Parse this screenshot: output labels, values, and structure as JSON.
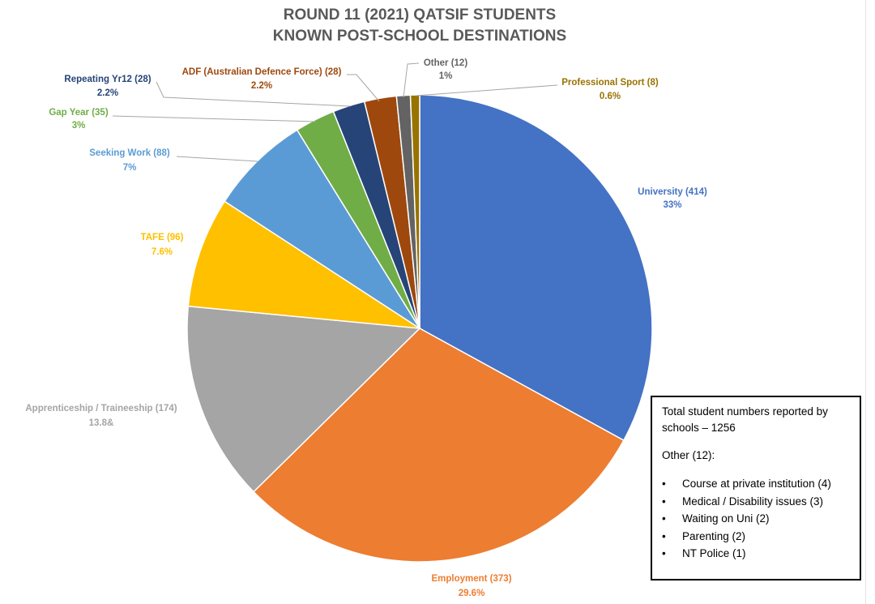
{
  "chart_data": {
    "type": "pie",
    "title_lines": [
      "ROUND 11 (2021) QATSIF STUDENTS",
      "KNOWN POST-SCHOOL DESTINATIONS"
    ],
    "slices": [
      {
        "label": "University",
        "count": 414,
        "count_text": "University (414)",
        "pct_text": "33%",
        "color": "#4472C4"
      },
      {
        "label": "Employment",
        "count": 373,
        "count_text": "Employment (373)",
        "pct_text": "29.6%",
        "color": "#ED7D31"
      },
      {
        "label": "Apprenticeship / Traineeship",
        "count": 174,
        "count_text": "Apprenticeship / Traineeship (174)",
        "pct_text": "13.8&",
        "color": "#A5A5A5"
      },
      {
        "label": "TAFE",
        "count": 96,
        "count_text": "TAFE (96)",
        "pct_text": "7.6%",
        "color": "#FFC000"
      },
      {
        "label": "Seeking Work",
        "count": 88,
        "count_text": "Seeking Work (88)",
        "pct_text": "7%",
        "color": "#5B9BD5"
      },
      {
        "label": "Gap Year",
        "count": 35,
        "count_text": "Gap Year (35)",
        "pct_text": "3%",
        "color": "#70AD47"
      },
      {
        "label": "Repeating Yr12",
        "count": 28,
        "count_text": "Repeating Yr12 (28)",
        "pct_text": "2.2%",
        "color": "#264478"
      },
      {
        "label": "ADF (Australian Defence Force)",
        "count": 28,
        "count_text": "ADF (Australian Defence Force) (28)",
        "pct_text": "2.2%",
        "color": "#9E480E"
      },
      {
        "label": "Other",
        "count": 12,
        "count_text": "Other (12)",
        "pct_text": "1%",
        "color": "#636363"
      },
      {
        "label": "Professional Sport",
        "count": 8,
        "count_text": "Professional Sport (8)",
        "pct_text": "0.6%",
        "color": "#997300"
      }
    ]
  },
  "info_box": {
    "total_text": "Total student numbers reported by schools – 1256",
    "other_heading": "Other (12):",
    "bullet_symbol": "•",
    "other_items": [
      "Course at private institution (4)",
      "Medical / Disability issues (3)",
      "Waiting on Uni (2)",
      "Parenting (2)",
      "NT Police (1)"
    ]
  }
}
